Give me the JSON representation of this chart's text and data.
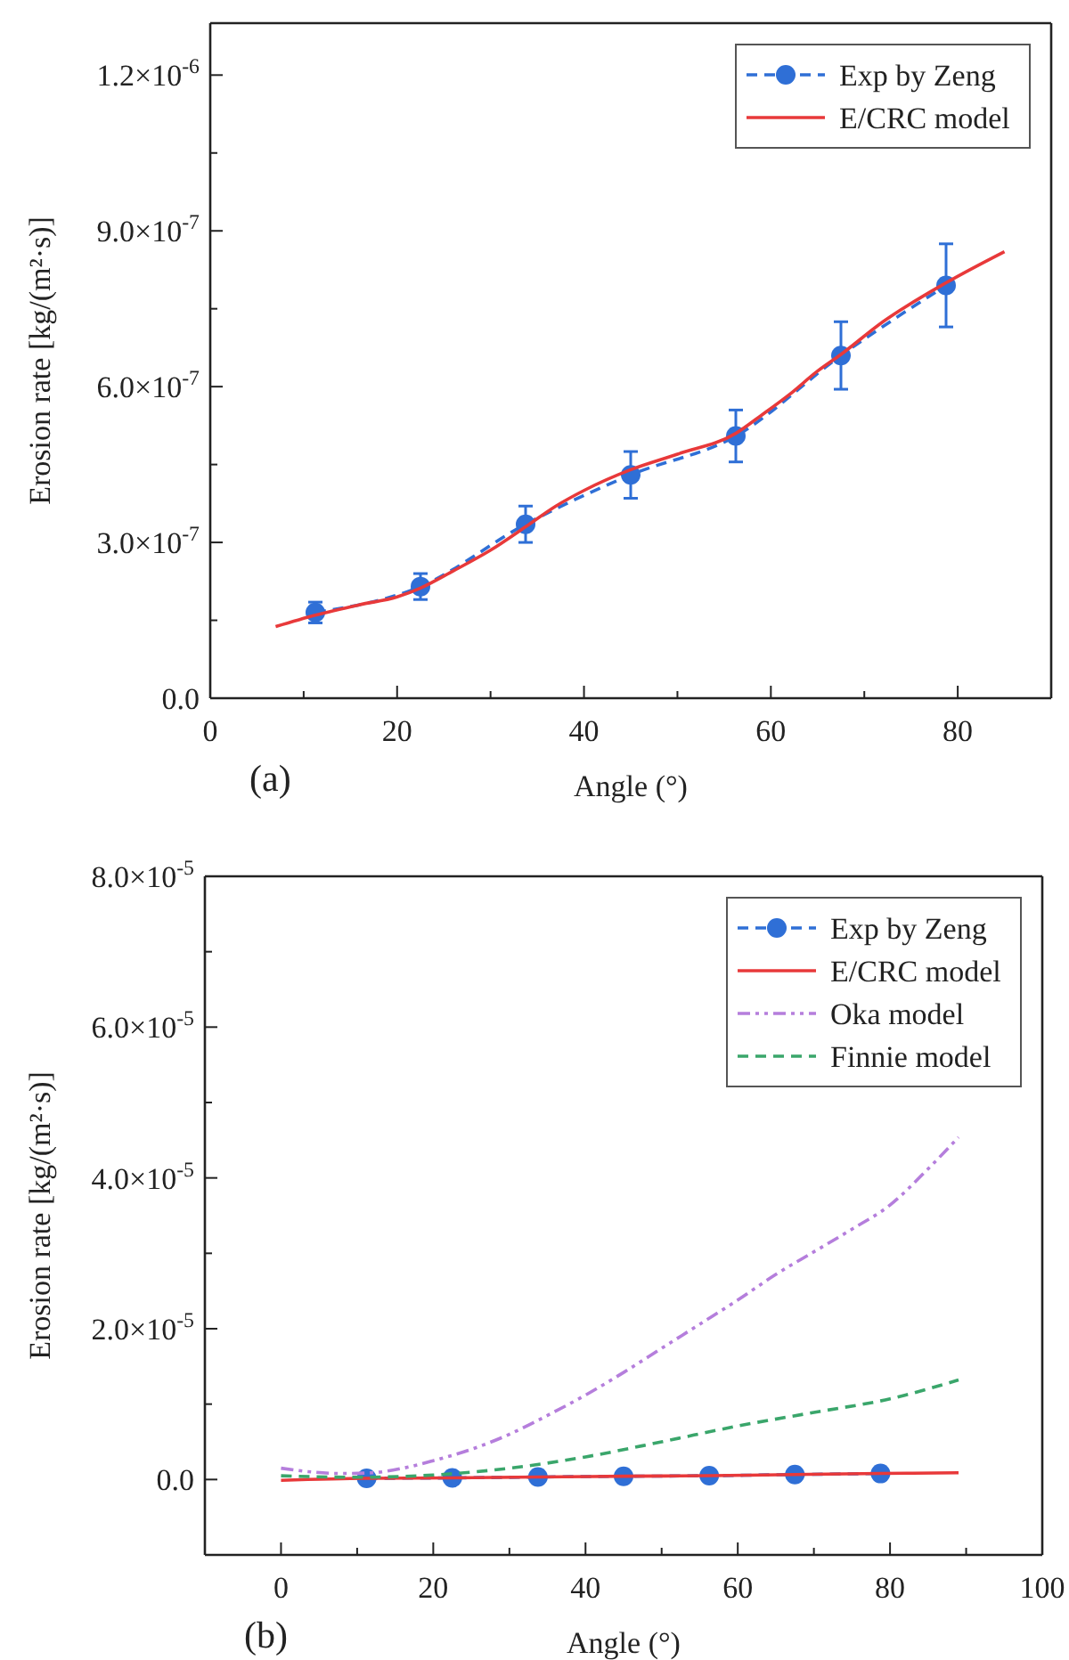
{
  "chart_data": [
    {
      "type": "line",
      "xlabel": "Angle (°)",
      "ylabel": "Erosion rate [kg/(m²·s)]",
      "annotations": [
        "(a)"
      ],
      "legend": "top right",
      "xlim": [
        0,
        90
      ],
      "ylim": [
        0,
        1.3e-06
      ],
      "xticks": [
        0,
        {
          "value": 10,
          "label": null
        },
        20,
        {
          "value": 30,
          "label": null
        },
        40,
        {
          "value": 50,
          "label": null
        },
        60,
        {
          "value": 70,
          "label": null
        },
        80,
        {
          "value": 90,
          "label": null
        }
      ],
      "yticks": [
        {
          "value": 0,
          "label": "0.0"
        },
        {
          "value": 1.5e-07,
          "label": null
        },
        {
          "value": 3e-07,
          "label": "3.0×10$^{-7}$"
        },
        {
          "value": 4.5e-07,
          "label": null
        },
        {
          "value": 6e-07,
          "label": "6.0×10$^{-7}$"
        },
        {
          "value": 7.5e-07,
          "label": null
        },
        {
          "value": 9e-07,
          "label": "9.0×10$^{-7}$"
        },
        {
          "value": 1.05e-06,
          "label": null
        },
        {
          "value": 1.2e-06,
          "label": "1.2×10$^{-6}$"
        }
      ],
      "series": [
        {
          "name": "Exp by Zeng",
          "color": "#2f6fd6",
          "marker": "circle",
          "line_style": "dashed",
          "x": [
            11.25,
            22.5,
            33.75,
            45,
            56.25,
            67.5,
            78.75
          ],
          "values": [
            1.65e-07,
            2.15e-07,
            3.35e-07,
            4.3e-07,
            5.05e-07,
            6.6e-07,
            7.95e-07
          ],
          "errors": [
            2e-08,
            2.5e-08,
            3.5e-08,
            4.5e-08,
            5e-08,
            6.5e-08,
            8e-08
          ]
        },
        {
          "name": "E/CRC model",
          "color": "#e8393a",
          "marker": "none",
          "line_style": "solid",
          "x": [
            7,
            11.25,
            16,
            20,
            22.5,
            26,
            30,
            33.75,
            37,
            40,
            45,
            50,
            56.25,
            59,
            62,
            65,
            67.5,
            72,
            78.75,
            85
          ],
          "values": [
            1.38e-07,
            1.6e-07,
            1.8e-07,
            1.95e-07,
            2.12e-07,
            2.45e-07,
            2.85e-07,
            3.3e-07,
            3.7e-07,
            4e-07,
            4.4e-07,
            4.7e-07,
            5.1e-07,
            5.45e-07,
            5.85e-07,
            6.3e-07,
            6.62e-07,
            7.25e-07,
            8e-07,
            8.6e-07
          ]
        }
      ]
    },
    {
      "type": "line",
      "xlabel": "Angle (°)",
      "ylabel": "Erosion rate [kg/(m²·s)]",
      "annotations": [
        "(b)"
      ],
      "legend": "top right",
      "xlim": [
        -10,
        100
      ],
      "ylim": [
        -1e-05,
        8e-05
      ],
      "xticks": [
        0,
        {
          "value": 10,
          "label": null
        },
        20,
        {
          "value": 30,
          "label": null
        },
        40,
        {
          "value": 50,
          "label": null
        },
        60,
        {
          "value": 70,
          "label": null
        },
        80,
        {
          "value": 90,
          "label": null
        },
        100
      ],
      "yticks": [
        {
          "value": 0,
          "label": "0.0"
        },
        {
          "value": 1e-05,
          "label": null
        },
        {
          "value": 2e-05,
          "label": "2.0×10$^{-5}$"
        },
        {
          "value": 3e-05,
          "label": null
        },
        {
          "value": 4e-05,
          "label": "4.0×10$^{-5}$"
        },
        {
          "value": 5e-05,
          "label": null
        },
        {
          "value": 6e-05,
          "label": "6.0×10$^{-5}$"
        },
        {
          "value": 7e-05,
          "label": null
        },
        {
          "value": 8e-05,
          "label": "8.0×10$^{-5}$"
        }
      ],
      "series": [
        {
          "name": "Exp by Zeng",
          "color": "#2f6fd6",
          "marker": "circle",
          "line_style": "dashed",
          "x": [
            11.25,
            22.5,
            33.75,
            45,
            56.25,
            67.5,
            78.75
          ],
          "values": [
            1.65e-07,
            2.15e-07,
            3.35e-07,
            4.3e-07,
            5.05e-07,
            6.6e-07,
            7.95e-07
          ]
        },
        {
          "name": "E/CRC model",
          "color": "#e8393a",
          "marker": "none",
          "line_style": "solid",
          "x": [
            0,
            11.25,
            22.5,
            33.75,
            45,
            56.25,
            67.5,
            78.75,
            89
          ],
          "values": [
            -1e-07,
            1.6e-07,
            2.1e-07,
            3.3e-07,
            4.4e-07,
            5.1e-07,
            6.6e-07,
            8e-07,
            9e-07
          ]
        },
        {
          "name": "Oka model",
          "color": "#b57edc",
          "marker": "none",
          "line_style": "dashdot",
          "x": [
            0,
            4,
            8,
            12,
            16,
            20,
            25,
            30,
            35,
            40,
            45,
            50,
            55,
            60,
            65,
            70,
            75,
            80,
            85,
            89
          ],
          "values": [
            1.5e-06,
            1e-06,
            8e-07,
            9e-07,
            1.5e-06,
            2.5e-06,
            4e-06,
            6e-06,
            8.5e-06,
            1.12e-05,
            1.42e-05,
            1.74e-05,
            2.06e-05,
            2.38e-05,
            2.72e-05,
            3.02e-05,
            3.32e-05,
            3.64e-05,
            4.12e-05,
            4.54e-05
          ]
        },
        {
          "name": "Finnie model",
          "color": "#3aa66b",
          "marker": "none",
          "line_style": "dashed",
          "x": [
            0,
            10,
            20,
            30,
            40,
            50,
            60,
            70,
            80,
            89
          ],
          "values": [
            5e-07,
            3e-07,
            6e-07,
            1.5e-06,
            3e-06,
            5e-06,
            7.1e-06,
            8.9e-06,
            1.07e-05,
            1.32e-05
          ]
        }
      ]
    }
  ]
}
